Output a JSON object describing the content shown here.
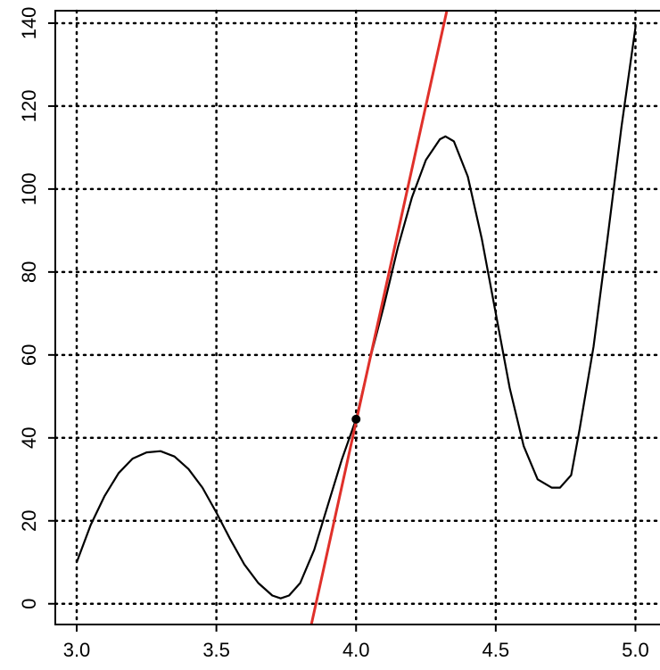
{
  "chart_data": {
    "type": "line",
    "title": "",
    "xlabel": "",
    "ylabel": "",
    "xlim": [
      3.0,
      5.0
    ],
    "ylim": [
      -5,
      143
    ],
    "grid": true,
    "legend": "none",
    "x_ticks": [
      "3.0",
      "3.5",
      "4.0",
      "4.5",
      "5.0"
    ],
    "y_ticks": [
      "0",
      "20",
      "40",
      "60",
      "80",
      "100",
      "120",
      "140"
    ],
    "series": [
      {
        "kind": "curve",
        "color": "#000000",
        "points": [
          [
            3.0,
            10
          ],
          [
            3.05,
            19
          ],
          [
            3.1,
            26
          ],
          [
            3.15,
            31.5
          ],
          [
            3.2,
            35
          ],
          [
            3.25,
            36.5
          ],
          [
            3.3,
            36.8
          ],
          [
            3.35,
            35.5
          ],
          [
            3.4,
            32.5
          ],
          [
            3.45,
            28
          ],
          [
            3.5,
            22
          ],
          [
            3.55,
            15.5
          ],
          [
            3.6,
            9.5
          ],
          [
            3.65,
            5
          ],
          [
            3.7,
            2
          ],
          [
            3.73,
            1.3
          ],
          [
            3.76,
            2
          ],
          [
            3.8,
            5
          ],
          [
            3.85,
            13
          ],
          [
            3.9,
            24
          ],
          [
            3.95,
            35
          ],
          [
            4.0,
            44.5
          ],
          [
            4.05,
            59
          ],
          [
            4.1,
            72
          ],
          [
            4.15,
            86
          ],
          [
            4.2,
            98
          ],
          [
            4.25,
            107
          ],
          [
            4.3,
            112
          ],
          [
            4.32,
            112.7
          ],
          [
            4.35,
            111.5
          ],
          [
            4.4,
            103
          ],
          [
            4.45,
            88
          ],
          [
            4.5,
            70
          ],
          [
            4.55,
            52
          ],
          [
            4.6,
            38
          ],
          [
            4.65,
            30
          ],
          [
            4.7,
            28
          ],
          [
            4.73,
            28
          ],
          [
            4.77,
            31
          ],
          [
            4.8,
            42
          ],
          [
            4.85,
            62
          ],
          [
            4.9,
            88
          ],
          [
            4.95,
            115
          ],
          [
            5.0,
            139
          ]
        ]
      },
      {
        "kind": "tangent",
        "color": "#e0302a",
        "points": [
          [
            3.84,
            -5
          ],
          [
            4.325,
            143
          ]
        ]
      }
    ],
    "marker": {
      "x": 4.0,
      "y": 44.5,
      "color": "#000000"
    }
  }
}
